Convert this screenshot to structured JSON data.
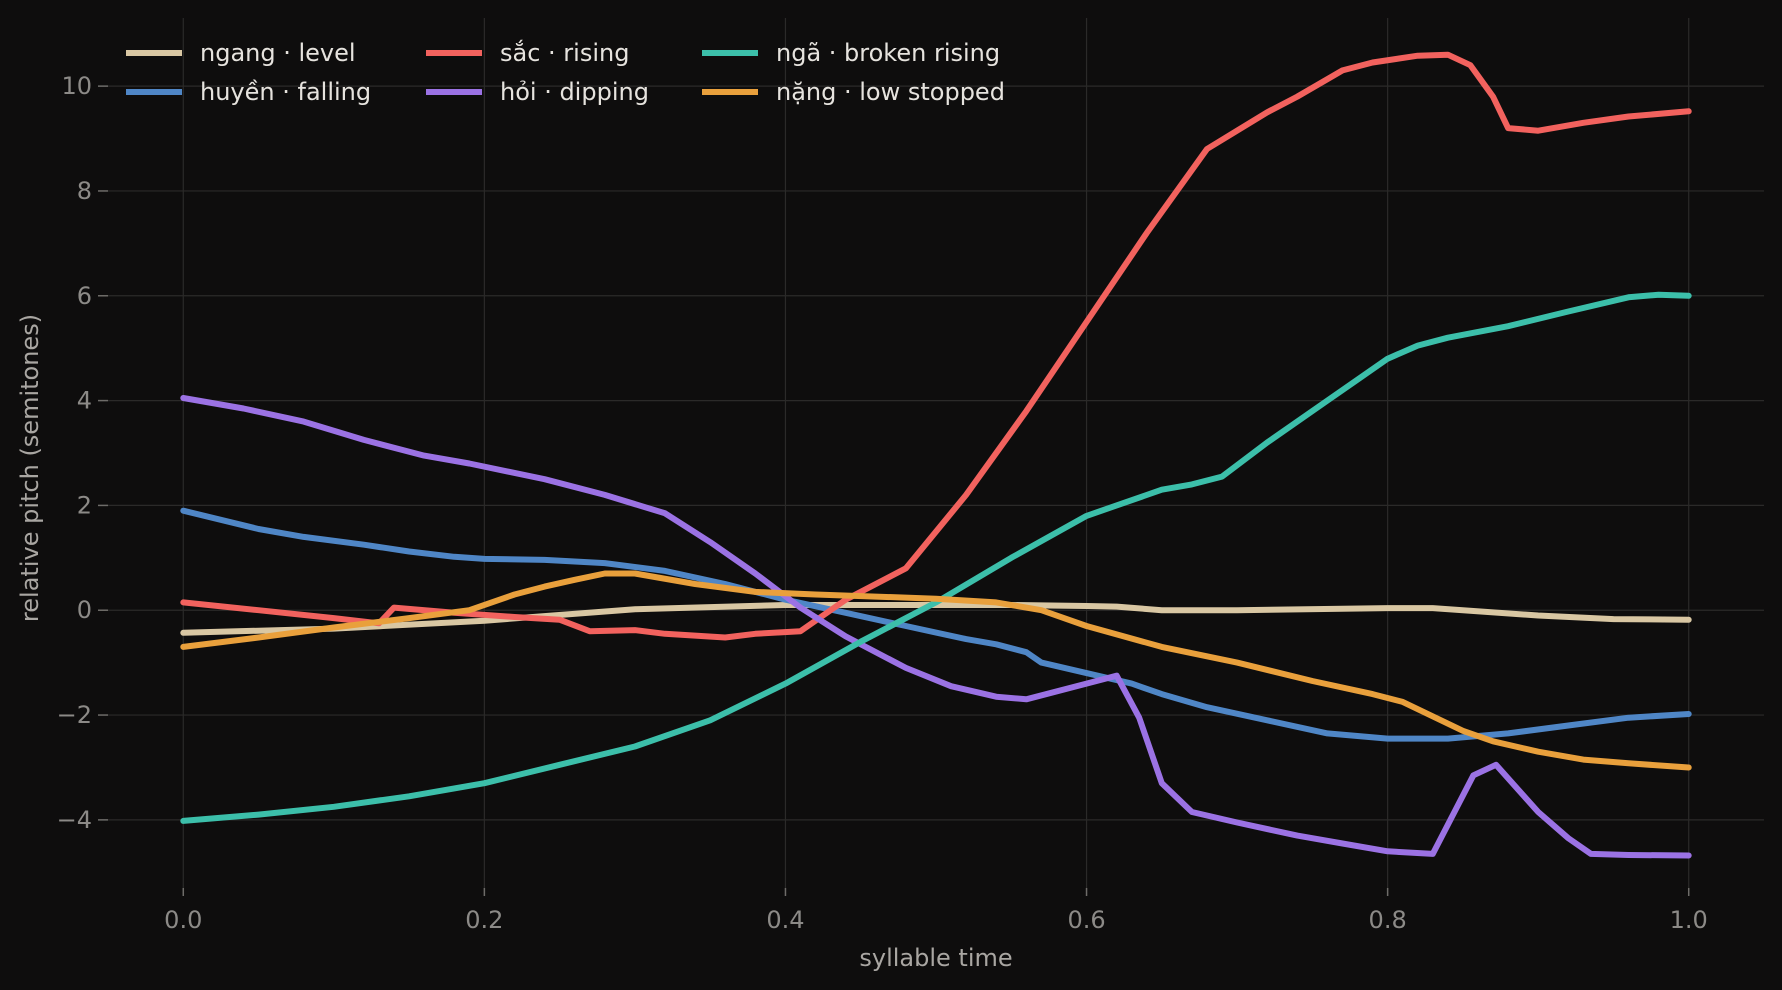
{
  "chart_data": {
    "type": "line",
    "title": "",
    "xlabel": "syllable time",
    "ylabel": "relative pitch (semitones)",
    "xlim": [
      -0.05,
      1.05
    ],
    "ylim": [
      -5.3,
      11.3
    ],
    "x_ticks": [
      0.0,
      0.2,
      0.4,
      0.6,
      0.8,
      1.0
    ],
    "x_tick_labels": [
      "0.0",
      "0.2",
      "0.4",
      "0.6",
      "0.8",
      "1.0"
    ],
    "y_ticks": [
      -4,
      -2,
      0,
      2,
      4,
      6,
      8,
      10
    ],
    "y_tick_labels": [
      "−4",
      "−2",
      "0",
      "2",
      "4",
      "6",
      "8",
      "10"
    ],
    "grid": true,
    "legend_position": "top-left",
    "series": [
      {
        "name": "ngang · level",
        "color": "#d9c7a3",
        "x": [
          0.0,
          0.1,
          0.2,
          0.3,
          0.4,
          0.5,
          0.55,
          0.6,
          0.62,
          0.65,
          0.7,
          0.8,
          0.83,
          0.9,
          0.95,
          1.0
        ],
        "y": [
          -0.43,
          -0.35,
          -0.2,
          0.02,
          0.1,
          0.1,
          0.1,
          0.08,
          0.07,
          0.0,
          0.0,
          0.04,
          0.04,
          -0.1,
          -0.17,
          -0.18
        ]
      },
      {
        "name": "huyền · falling",
        "color": "#4f86c6",
        "x": [
          0.0,
          0.05,
          0.08,
          0.12,
          0.15,
          0.18,
          0.2,
          0.24,
          0.28,
          0.32,
          0.36,
          0.4,
          0.44,
          0.48,
          0.52,
          0.54,
          0.56,
          0.57,
          0.6,
          0.63,
          0.65,
          0.68,
          0.72,
          0.76,
          0.8,
          0.84,
          0.88,
          0.92,
          0.96,
          1.0
        ],
        "y": [
          1.9,
          1.55,
          1.4,
          1.25,
          1.12,
          1.02,
          0.98,
          0.96,
          0.9,
          0.75,
          0.5,
          0.2,
          -0.05,
          -0.3,
          -0.55,
          -0.65,
          -0.8,
          -1.0,
          -1.2,
          -1.4,
          -1.6,
          -1.85,
          -2.1,
          -2.35,
          -2.45,
          -2.45,
          -2.35,
          -2.2,
          -2.05,
          -1.98
        ]
      },
      {
        "name": "sắc · rising",
        "color": "#f2625e",
        "x": [
          0.0,
          0.05,
          0.1,
          0.13,
          0.14,
          0.18,
          0.22,
          0.25,
          0.27,
          0.3,
          0.32,
          0.36,
          0.38,
          0.41,
          0.44,
          0.48,
          0.52,
          0.56,
          0.6,
          0.64,
          0.68,
          0.72,
          0.74,
          0.77,
          0.79,
          0.82,
          0.84,
          0.855,
          0.87,
          0.88,
          0.9,
          0.93,
          0.96,
          1.0
        ],
        "y": [
          0.15,
          0.0,
          -0.15,
          -0.25,
          0.05,
          -0.05,
          -0.13,
          -0.18,
          -0.4,
          -0.38,
          -0.45,
          -0.52,
          -0.45,
          -0.4,
          0.2,
          0.8,
          2.2,
          3.8,
          5.5,
          7.2,
          8.8,
          9.5,
          9.8,
          10.3,
          10.45,
          10.58,
          10.6,
          10.4,
          9.8,
          9.2,
          9.15,
          9.3,
          9.42,
          9.52
        ]
      },
      {
        "name": "hỏi · dipping",
        "color": "#9b72e4",
        "x": [
          0.0,
          0.04,
          0.08,
          0.12,
          0.16,
          0.19,
          0.24,
          0.28,
          0.32,
          0.35,
          0.38,
          0.41,
          0.44,
          0.48,
          0.51,
          0.54,
          0.56,
          0.6,
          0.62,
          0.635,
          0.65,
          0.67,
          0.7,
          0.74,
          0.77,
          0.8,
          0.83,
          0.857,
          0.872,
          0.9,
          0.92,
          0.935,
          0.96,
          1.0
        ],
        "y": [
          4.05,
          3.85,
          3.6,
          3.25,
          2.95,
          2.8,
          2.5,
          2.2,
          1.85,
          1.3,
          0.7,
          0.05,
          -0.5,
          -1.1,
          -1.45,
          -1.65,
          -1.7,
          -1.4,
          -1.25,
          -2.05,
          -3.3,
          -3.85,
          -4.05,
          -4.3,
          -4.45,
          -4.6,
          -4.65,
          -3.15,
          -2.95,
          -3.85,
          -4.35,
          -4.65,
          -4.67,
          -4.68
        ]
      },
      {
        "name": "ngã · broken rising",
        "color": "#3cbfaa",
        "x": [
          0.0,
          0.05,
          0.1,
          0.15,
          0.2,
          0.25,
          0.3,
          0.35,
          0.4,
          0.45,
          0.5,
          0.55,
          0.6,
          0.65,
          0.67,
          0.69,
          0.72,
          0.76,
          0.8,
          0.82,
          0.84,
          0.88,
          0.92,
          0.96,
          0.98,
          1.0
        ],
        "y": [
          -4.02,
          -3.9,
          -3.75,
          -3.55,
          -3.3,
          -2.95,
          -2.6,
          -2.1,
          -1.4,
          -0.6,
          0.15,
          1.0,
          1.8,
          2.3,
          2.4,
          2.55,
          3.2,
          4.0,
          4.8,
          5.05,
          5.2,
          5.42,
          5.7,
          5.97,
          6.02,
          6.0
        ]
      },
      {
        "name": "nặng · low stopped",
        "color": "#e9a03c",
        "x": [
          0.0,
          0.05,
          0.1,
          0.15,
          0.19,
          0.22,
          0.24,
          0.26,
          0.28,
          0.3,
          0.34,
          0.38,
          0.42,
          0.46,
          0.5,
          0.54,
          0.57,
          0.6,
          0.65,
          0.7,
          0.75,
          0.79,
          0.81,
          0.85,
          0.87,
          0.9,
          0.93,
          0.96,
          1.0
        ],
        "y": [
          -0.7,
          -0.52,
          -0.33,
          -0.15,
          0.0,
          0.3,
          0.45,
          0.58,
          0.7,
          0.7,
          0.5,
          0.35,
          0.3,
          0.26,
          0.22,
          0.15,
          0.0,
          -0.3,
          -0.7,
          -1.0,
          -1.35,
          -1.6,
          -1.75,
          -2.3,
          -2.5,
          -2.7,
          -2.85,
          -2.92,
          -3.0
        ]
      }
    ]
  }
}
